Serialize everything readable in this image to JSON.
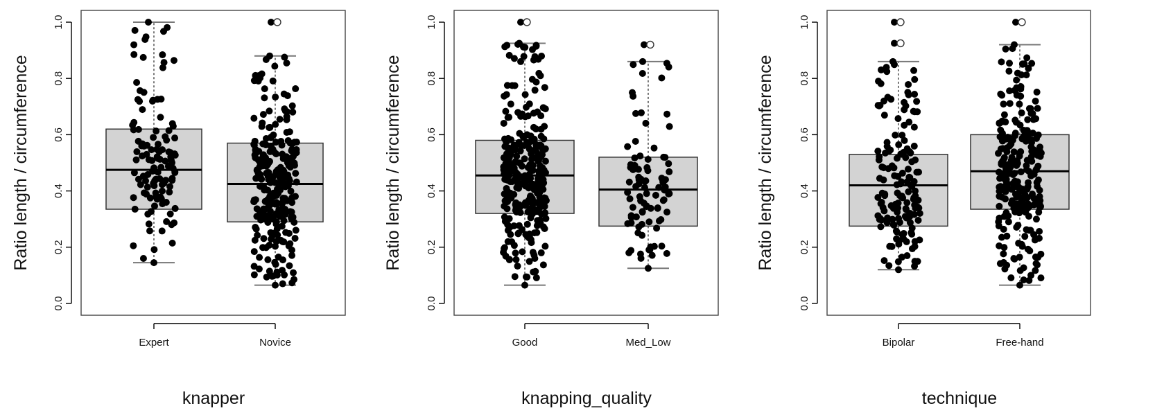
{
  "chart_data": [
    {
      "type": "box",
      "xlabel": "knapper",
      "ylabel": "Ratio length / circumference",
      "ylim": [
        0,
        1
      ],
      "yticks": [
        "0.0",
        "0.2",
        "0.4",
        "0.6",
        "0.8",
        "1.0"
      ],
      "categories": [
        "Expert",
        "Novice"
      ],
      "boxes": [
        {
          "category": "Expert",
          "whisker_low": 0.145,
          "q1": 0.335,
          "median": 0.475,
          "q3": 0.62,
          "whisker_high": 1.0,
          "outliers": [],
          "n_points": 120,
          "seed": 11
        },
        {
          "category": "Novice",
          "whisker_low": 0.065,
          "q1": 0.29,
          "median": 0.425,
          "q3": 0.57,
          "whisker_high": 0.88,
          "outliers": [
            1.0
          ],
          "n_points": 260,
          "seed": 23
        }
      ]
    },
    {
      "type": "box",
      "xlabel": "knapping_quality",
      "ylabel": "Ratio length / circumference",
      "ylim": [
        0,
        1
      ],
      "yticks": [
        "0.0",
        "0.2",
        "0.4",
        "0.6",
        "0.8",
        "1.0"
      ],
      "categories": [
        "Good",
        "Med_Low"
      ],
      "boxes": [
        {
          "category": "Good",
          "whisker_low": 0.065,
          "q1": 0.32,
          "median": 0.455,
          "q3": 0.58,
          "whisker_high": 0.925,
          "outliers": [
            1.0
          ],
          "n_points": 300,
          "seed": 37
        },
        {
          "category": "Med_Low",
          "whisker_low": 0.125,
          "q1": 0.275,
          "median": 0.405,
          "q3": 0.52,
          "whisker_high": 0.86,
          "outliers": [
            0.92
          ],
          "n_points": 90,
          "seed": 41
        }
      ]
    },
    {
      "type": "box",
      "xlabel": "technique",
      "ylabel": "Ratio length / circumference",
      "ylim": [
        0,
        1
      ],
      "yticks": [
        "0.0",
        "0.2",
        "0.4",
        "0.6",
        "0.8",
        "1.0"
      ],
      "categories": [
        "Bipolar",
        "Free-hand"
      ],
      "boxes": [
        {
          "category": "Bipolar",
          "whisker_low": 0.12,
          "q1": 0.275,
          "median": 0.42,
          "q3": 0.53,
          "whisker_high": 0.86,
          "outliers": [
            0.925,
            1.0
          ],
          "n_points": 160,
          "seed": 53
        },
        {
          "category": "Free-hand",
          "whisker_low": 0.065,
          "q1": 0.335,
          "median": 0.47,
          "q3": 0.6,
          "whisker_high": 0.92,
          "outliers": [
            1.0
          ],
          "n_points": 260,
          "seed": 67
        }
      ]
    }
  ]
}
